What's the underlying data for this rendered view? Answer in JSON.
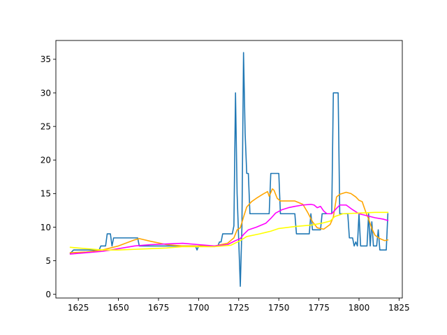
{
  "chart_data": {
    "type": "line",
    "title": "",
    "xlabel": "",
    "ylabel": "",
    "xlim": [
      1611,
      1827
    ],
    "ylim": [
      -0.55,
      37.8
    ],
    "xticks": [
      1625,
      1650,
      1675,
      1700,
      1725,
      1750,
      1775,
      1800,
      1825
    ],
    "yticks": [
      0,
      5,
      10,
      15,
      20,
      25,
      30,
      35
    ],
    "grid": false,
    "legend": "none",
    "series": [
      {
        "color": "#1f77b4",
        "points": [
          [
            1620,
            6.1
          ],
          [
            1622,
            6.6
          ],
          [
            1638,
            6.6
          ],
          [
            1639,
            7.2
          ],
          [
            1642,
            7.2
          ],
          [
            1643,
            9.0
          ],
          [
            1645,
            9.0
          ],
          [
            1646,
            7.2
          ],
          [
            1647,
            8.4
          ],
          [
            1662,
            8.4
          ],
          [
            1663,
            7.2
          ],
          [
            1698,
            7.2
          ],
          [
            1699,
            6.6
          ],
          [
            1700,
            7.2
          ],
          [
            1712,
            7.2
          ],
          [
            1713,
            7.8
          ],
          [
            1714,
            7.8
          ],
          [
            1715,
            9.0
          ],
          [
            1721,
            9.0
          ],
          [
            1722,
            10.2
          ],
          [
            1723,
            30.0
          ],
          [
            1724,
            15.0
          ],
          [
            1726,
            1.2
          ],
          [
            1727,
            10.0
          ],
          [
            1728,
            36.0
          ],
          [
            1729,
            24.0
          ],
          [
            1730,
            18.0
          ],
          [
            1731,
            18.0
          ],
          [
            1732,
            12.0
          ],
          [
            1744,
            12.0
          ],
          [
            1745,
            18.0
          ],
          [
            1750,
            18.0
          ],
          [
            1751,
            12.0
          ],
          [
            1760,
            12.0
          ],
          [
            1761,
            9.0
          ],
          [
            1769,
            9.0
          ],
          [
            1770,
            12.0
          ],
          [
            1771,
            9.6
          ],
          [
            1776,
            9.6
          ],
          [
            1777,
            12.0
          ],
          [
            1783,
            12.0
          ],
          [
            1784,
            30.0
          ],
          [
            1787,
            30.0
          ],
          [
            1788,
            12.0
          ],
          [
            1793,
            12.0
          ],
          [
            1794,
            8.4
          ],
          [
            1796,
            8.4
          ],
          [
            1797,
            7.2
          ],
          [
            1798,
            7.8
          ],
          [
            1799,
            7.2
          ],
          [
            1800,
            12.0
          ],
          [
            1801,
            7.2
          ],
          [
            1805,
            7.2
          ],
          [
            1806,
            12.0
          ],
          [
            1807,
            7.2
          ],
          [
            1808,
            10.8
          ],
          [
            1809,
            7.2
          ],
          [
            1811,
            7.2
          ],
          [
            1812,
            9.6
          ],
          [
            1813,
            6.6
          ],
          [
            1817,
            6.6
          ],
          [
            1818,
            12.0
          ]
        ]
      },
      {
        "color": "#ffa500",
        "points": [
          [
            1620,
            6.2
          ],
          [
            1630,
            6.3
          ],
          [
            1640,
            6.6
          ],
          [
            1650,
            7.2
          ],
          [
            1660,
            8.1
          ],
          [
            1663,
            8.3
          ],
          [
            1670,
            7.9
          ],
          [
            1680,
            7.4
          ],
          [
            1690,
            7.2
          ],
          [
            1700,
            7.2
          ],
          [
            1710,
            7.2
          ],
          [
            1718,
            7.6
          ],
          [
            1722,
            8.4
          ],
          [
            1724,
            9.6
          ],
          [
            1726,
            9.9
          ],
          [
            1728,
            11.5
          ],
          [
            1730,
            13.0
          ],
          [
            1733,
            13.8
          ],
          [
            1736,
            14.3
          ],
          [
            1740,
            14.9
          ],
          [
            1743,
            15.3
          ],
          [
            1744,
            14.6
          ],
          [
            1746,
            15.7
          ],
          [
            1747,
            15.5
          ],
          [
            1749,
            14.3
          ],
          [
            1751,
            13.9
          ],
          [
            1755,
            13.9
          ],
          [
            1760,
            13.9
          ],
          [
            1765,
            13.4
          ],
          [
            1768,
            12.2
          ],
          [
            1771,
            10.8
          ],
          [
            1774,
            9.9
          ],
          [
            1778,
            9.7
          ],
          [
            1782,
            10.4
          ],
          [
            1784,
            11.5
          ],
          [
            1786,
            14.5
          ],
          [
            1788,
            14.9
          ],
          [
            1792,
            15.2
          ],
          [
            1795,
            15.0
          ],
          [
            1798,
            14.5
          ],
          [
            1800,
            14.0
          ],
          [
            1802,
            13.8
          ],
          [
            1804,
            12.4
          ],
          [
            1806,
            11.2
          ],
          [
            1808,
            9.8
          ],
          [
            1810,
            8.8
          ],
          [
            1813,
            8.3
          ],
          [
            1816,
            8.0
          ],
          [
            1818,
            8.1
          ]
        ]
      },
      {
        "color": "#ff00ff",
        "points": [
          [
            1620,
            6.0
          ],
          [
            1630,
            6.2
          ],
          [
            1640,
            6.4
          ],
          [
            1650,
            6.8
          ],
          [
            1660,
            7.2
          ],
          [
            1670,
            7.4
          ],
          [
            1680,
            7.5
          ],
          [
            1690,
            7.6
          ],
          [
            1700,
            7.4
          ],
          [
            1710,
            7.2
          ],
          [
            1718,
            7.4
          ],
          [
            1723,
            8.0
          ],
          [
            1726,
            8.3
          ],
          [
            1728,
            8.9
          ],
          [
            1731,
            9.6
          ],
          [
            1736,
            10.0
          ],
          [
            1742,
            10.6
          ],
          [
            1745,
            11.3
          ],
          [
            1748,
            12.1
          ],
          [
            1752,
            12.6
          ],
          [
            1756,
            12.9
          ],
          [
            1760,
            13.1
          ],
          [
            1765,
            13.3
          ],
          [
            1770,
            13.4
          ],
          [
            1772,
            13.3
          ],
          [
            1774,
            12.9
          ],
          [
            1776,
            13.1
          ],
          [
            1778,
            12.4
          ],
          [
            1780,
            12.0
          ],
          [
            1783,
            12.0
          ],
          [
            1786,
            12.8
          ],
          [
            1788,
            13.3
          ],
          [
            1792,
            13.3
          ],
          [
            1796,
            12.6
          ],
          [
            1800,
            12.0
          ],
          [
            1805,
            11.7
          ],
          [
            1810,
            11.4
          ],
          [
            1815,
            11.2
          ],
          [
            1818,
            11.0
          ]
        ]
      },
      {
        "color": "#ffff00",
        "points": [
          [
            1620,
            7.0
          ],
          [
            1630,
            6.8
          ],
          [
            1640,
            6.6
          ],
          [
            1650,
            6.6
          ],
          [
            1660,
            6.7
          ],
          [
            1670,
            6.8
          ],
          [
            1680,
            6.9
          ],
          [
            1690,
            7.1
          ],
          [
            1700,
            7.1
          ],
          [
            1710,
            7.1
          ],
          [
            1720,
            7.3
          ],
          [
            1726,
            8.0
          ],
          [
            1730,
            8.6
          ],
          [
            1738,
            9.0
          ],
          [
            1745,
            9.4
          ],
          [
            1750,
            9.8
          ],
          [
            1760,
            10.1
          ],
          [
            1770,
            10.3
          ],
          [
            1777,
            10.6
          ],
          [
            1782,
            10.9
          ],
          [
            1785,
            11.6
          ],
          [
            1790,
            12.0
          ],
          [
            1800,
            12.1
          ],
          [
            1810,
            12.2
          ],
          [
            1818,
            12.2
          ]
        ]
      }
    ]
  }
}
